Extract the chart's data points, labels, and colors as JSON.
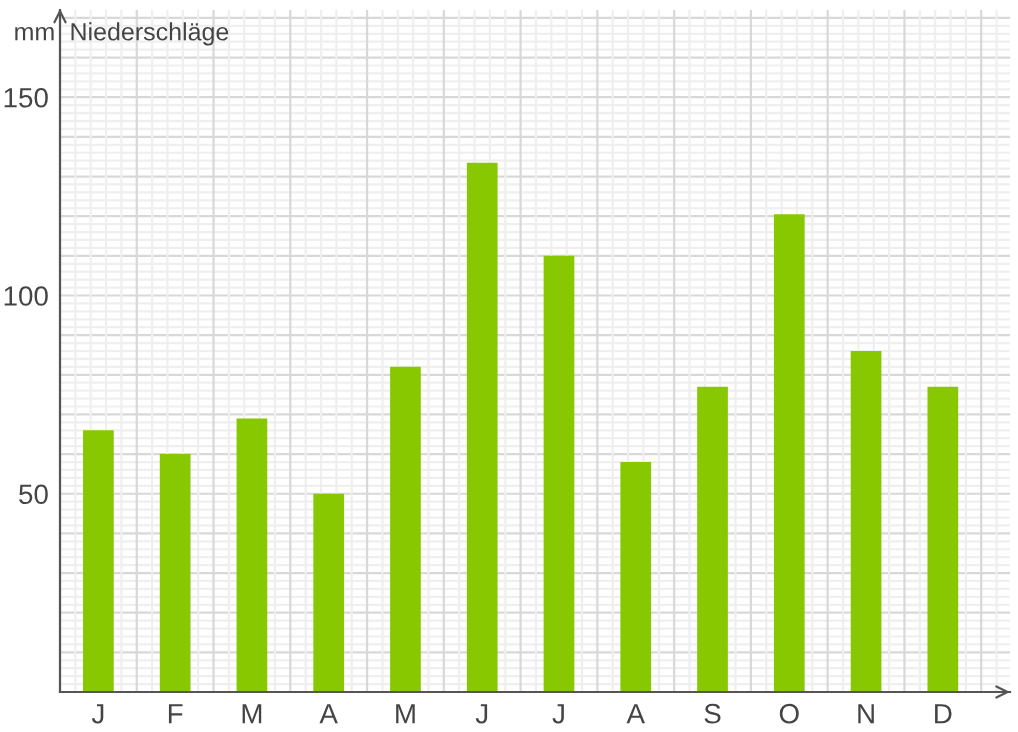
{
  "chart_data": {
    "type": "bar",
    "title": "Niederschläge",
    "ylabel": "mm",
    "categories": [
      "J",
      "F",
      "M",
      "A",
      "M",
      "J",
      "J",
      "A",
      "S",
      "O",
      "N",
      "D"
    ],
    "values": [
      66,
      60,
      69,
      50,
      82,
      133.5,
      110,
      58,
      77,
      120.5,
      86,
      77
    ],
    "color": "#88c800",
    "ylim": [
      0,
      172
    ],
    "yticks": [
      50,
      100,
      150
    ],
    "grid": true
  }
}
